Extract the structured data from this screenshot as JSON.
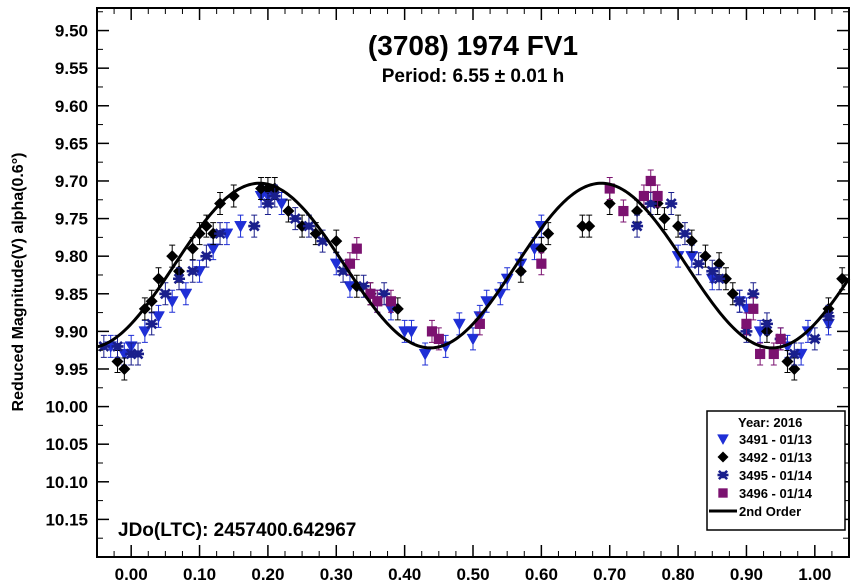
{
  "chart_data": {
    "type": "scatter",
    "title": "(3708) 1974 FV1",
    "subtitle": "Period: 6.55 ± 0.01 h",
    "ylabel": "Reduced Magnitude(V) alpha(0.6°)",
    "xlabel": "",
    "annotation": "JDo(LTC): 2457400.642967",
    "xlim": [
      -0.05,
      1.05
    ],
    "ylim": [
      9.47,
      10.2
    ],
    "y_inverted": true,
    "grid": false,
    "legend_position": "bottom-right",
    "legend_title": "Year: 2016",
    "x_ticks": [
      {
        "value": 0.0,
        "label": "0.00"
      },
      {
        "value": 0.1,
        "label": "0.10"
      },
      {
        "value": 0.2,
        "label": "0.20"
      },
      {
        "value": 0.3,
        "label": "0.30"
      },
      {
        "value": 0.4,
        "label": "0.40"
      },
      {
        "value": 0.5,
        "label": "0.50"
      },
      {
        "value": 0.6,
        "label": "0.60"
      },
      {
        "value": 0.7,
        "label": "0.70"
      },
      {
        "value": 0.8,
        "label": "0.80"
      },
      {
        "value": 0.9,
        "label": "0.90"
      },
      {
        "value": 1.0,
        "label": "1.00"
      }
    ],
    "y_ticks": [
      {
        "value": 9.5,
        "label": "9.50"
      },
      {
        "value": 9.55,
        "label": "9.55"
      },
      {
        "value": 9.6,
        "label": "9.60"
      },
      {
        "value": 9.65,
        "label": "9.65"
      },
      {
        "value": 9.7,
        "label": "9.70"
      },
      {
        "value": 9.75,
        "label": "9.75"
      },
      {
        "value": 9.8,
        "label": "9.80"
      },
      {
        "value": 9.85,
        "label": "9.85"
      },
      {
        "value": 9.9,
        "label": "9.90"
      },
      {
        "value": 9.95,
        "label": "9.95"
      },
      {
        "value": 10.0,
        "label": "10.00"
      },
      {
        "value": 10.05,
        "label": "10.05"
      },
      {
        "value": 10.1,
        "label": "10.10"
      },
      {
        "value": 10.15,
        "label": "10.15"
      }
    ],
    "series": [
      {
        "name": "3491 - 01/13",
        "marker": "triangle-down",
        "color": "#1f2fd6",
        "points": [
          [
            -0.03,
            9.92
          ],
          [
            -0.01,
            9.93
          ],
          [
            0.0,
            9.92
          ],
          [
            0.02,
            9.9
          ],
          [
            0.04,
            9.88
          ],
          [
            0.06,
            9.86
          ],
          [
            0.08,
            9.85
          ],
          [
            0.1,
            9.82
          ],
          [
            0.12,
            9.79
          ],
          [
            0.14,
            9.77
          ],
          [
            0.16,
            9.76
          ],
          [
            0.19,
            9.72
          ],
          [
            0.2,
            9.72
          ],
          [
            0.22,
            9.73
          ],
          [
            0.3,
            9.81
          ],
          [
            0.32,
            9.84
          ],
          [
            0.36,
            9.86
          ],
          [
            0.38,
            9.87
          ],
          [
            0.4,
            9.9
          ],
          [
            0.41,
            9.9
          ],
          [
            0.43,
            9.93
          ],
          [
            0.46,
            9.92
          ],
          [
            0.48,
            9.89
          ],
          [
            0.5,
            9.91
          ],
          [
            0.51,
            9.88
          ],
          [
            0.52,
            9.86
          ],
          [
            0.54,
            9.85
          ],
          [
            0.55,
            9.83
          ],
          [
            0.57,
            9.81
          ],
          [
            0.59,
            9.79
          ],
          [
            0.6,
            9.76
          ],
          [
            0.8,
            9.8
          ],
          [
            0.82,
            9.8
          ],
          [
            0.85,
            9.83
          ],
          [
            0.89,
            9.86
          ],
          [
            0.9,
            9.87
          ],
          [
            0.92,
            9.9
          ],
          [
            0.96,
            9.92
          ],
          [
            0.98,
            9.93
          ],
          [
            0.99,
            9.9
          ],
          [
            1.02,
            9.89
          ]
        ]
      },
      {
        "name": "3492 - 01/13",
        "marker": "diamond",
        "color": "#000000",
        "points": [
          [
            -0.02,
            9.94
          ],
          [
            -0.01,
            9.95
          ],
          [
            0.02,
            9.87
          ],
          [
            0.03,
            9.86
          ],
          [
            0.04,
            9.83
          ],
          [
            0.06,
            9.8
          ],
          [
            0.07,
            9.82
          ],
          [
            0.09,
            9.79
          ],
          [
            0.1,
            9.77
          ],
          [
            0.11,
            9.76
          ],
          [
            0.12,
            9.77
          ],
          [
            0.13,
            9.73
          ],
          [
            0.15,
            9.72
          ],
          [
            0.19,
            9.71
          ],
          [
            0.2,
            9.71
          ],
          [
            0.21,
            9.71
          ],
          [
            0.23,
            9.74
          ],
          [
            0.25,
            9.76
          ],
          [
            0.27,
            9.77
          ],
          [
            0.3,
            9.78
          ],
          [
            0.33,
            9.84
          ],
          [
            0.35,
            9.85
          ],
          [
            0.39,
            9.87
          ],
          [
            0.57,
            9.82
          ],
          [
            0.6,
            9.79
          ],
          [
            0.61,
            9.77
          ],
          [
            0.66,
            9.76
          ],
          [
            0.67,
            9.76
          ],
          [
            0.7,
            9.73
          ],
          [
            0.74,
            9.74
          ],
          [
            0.77,
            9.73
          ],
          [
            0.78,
            9.75
          ],
          [
            0.8,
            9.76
          ],
          [
            0.82,
            9.78
          ],
          [
            0.84,
            9.8
          ],
          [
            0.86,
            9.81
          ],
          [
            0.87,
            9.83
          ],
          [
            0.88,
            9.85
          ],
          [
            0.93,
            9.9
          ],
          [
            0.96,
            9.94
          ],
          [
            0.97,
            9.95
          ],
          [
            1.02,
            9.87
          ],
          [
            1.04,
            9.83
          ]
        ]
      },
      {
        "name": "3495 - 01/14",
        "marker": "asterisk",
        "color": "#1a1f8c",
        "points": [
          [
            -0.04,
            9.92
          ],
          [
            -0.02,
            9.92
          ],
          [
            0.0,
            9.93
          ],
          [
            0.01,
            9.93
          ],
          [
            0.03,
            9.89
          ],
          [
            0.05,
            9.85
          ],
          [
            0.07,
            9.83
          ],
          [
            0.09,
            9.82
          ],
          [
            0.11,
            9.8
          ],
          [
            0.13,
            9.77
          ],
          [
            0.18,
            9.76
          ],
          [
            0.2,
            9.73
          ],
          [
            0.21,
            9.72
          ],
          [
            0.24,
            9.75
          ],
          [
            0.26,
            9.76
          ],
          [
            0.28,
            9.78
          ],
          [
            0.31,
            9.82
          ],
          [
            0.34,
            9.84
          ],
          [
            0.37,
            9.85
          ],
          [
            0.74,
            9.76
          ],
          [
            0.76,
            9.73
          ],
          [
            0.79,
            9.73
          ],
          [
            0.81,
            9.77
          ],
          [
            0.83,
            9.81
          ],
          [
            0.85,
            9.82
          ],
          [
            0.86,
            9.83
          ],
          [
            0.89,
            9.86
          ],
          [
            0.9,
            9.9
          ],
          [
            0.91,
            9.85
          ],
          [
            0.93,
            9.89
          ],
          [
            0.95,
            9.91
          ],
          [
            0.97,
            9.93
          ],
          [
            1.0,
            9.91
          ],
          [
            1.02,
            9.88
          ]
        ]
      },
      {
        "name": "3496 - 01/14",
        "marker": "square",
        "color": "#7b1270",
        "points": [
          [
            0.32,
            9.81
          ],
          [
            0.33,
            9.79
          ],
          [
            0.35,
            9.85
          ],
          [
            0.36,
            9.86
          ],
          [
            0.38,
            9.86
          ],
          [
            0.44,
            9.9
          ],
          [
            0.45,
            9.91
          ],
          [
            0.51,
            9.89
          ],
          [
            0.6,
            9.81
          ],
          [
            0.7,
            9.71
          ],
          [
            0.72,
            9.74
          ],
          [
            0.75,
            9.72
          ],
          [
            0.76,
            9.7
          ],
          [
            0.77,
            9.72
          ],
          [
            0.9,
            9.89
          ],
          [
            0.91,
            9.87
          ],
          [
            0.92,
            9.93
          ],
          [
            0.94,
            9.93
          ],
          [
            0.95,
            9.91
          ]
        ]
      },
      {
        "name": "2nd Order",
        "marker": "line",
        "color": "#000000",
        "curve": {
          "mean": 9.8125,
          "harmonics": [
            {
              "order": 1,
              "a": 0.0,
              "b": 0.0
            },
            {
              "order": 2,
              "a": 0.0775,
              "b": -0.0773
            }
          ]
        }
      }
    ]
  }
}
